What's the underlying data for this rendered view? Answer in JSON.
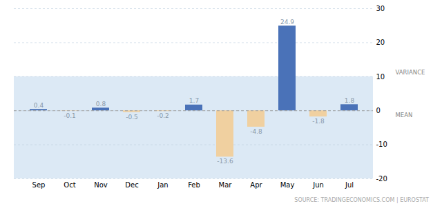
{
  "chart_data": {
    "type": "bar",
    "categories": [
      "Sep",
      "Oct",
      "Nov",
      "Dec",
      "Jan",
      "Feb",
      "Mar",
      "Apr",
      "May",
      "Jun",
      "Jul"
    ],
    "values": [
      0.4,
      -0.1,
      0.8,
      -0.5,
      -0.2,
      1.7,
      -13.6,
      -4.8,
      24.9,
      -1.8,
      1.8
    ],
    "colors": [
      "#4A72B8",
      "#F0D0A0",
      "#4A72B8",
      "#F0D0A0",
      "#F0D0A0",
      "#4A72B8",
      "#F0D0A0",
      "#F0D0A0",
      "#4A72B8",
      "#F0D0A0",
      "#4A72B8"
    ],
    "ylim": [
      -20,
      30
    ],
    "yticks": [
      30,
      20,
      10,
      0,
      -10,
      -20
    ],
    "grid": true,
    "data_labels": true,
    "band": {
      "from": -20,
      "to": 10,
      "color": "#DCE9F5"
    },
    "mean_line": 0,
    "annotations": [
      {
        "text": "VARIANCE",
        "y": 10
      },
      {
        "text": "MEAN",
        "y": 0
      }
    ],
    "source": "SOURCE: TRADINGECONOMICS.COM | EUROSTAT"
  }
}
